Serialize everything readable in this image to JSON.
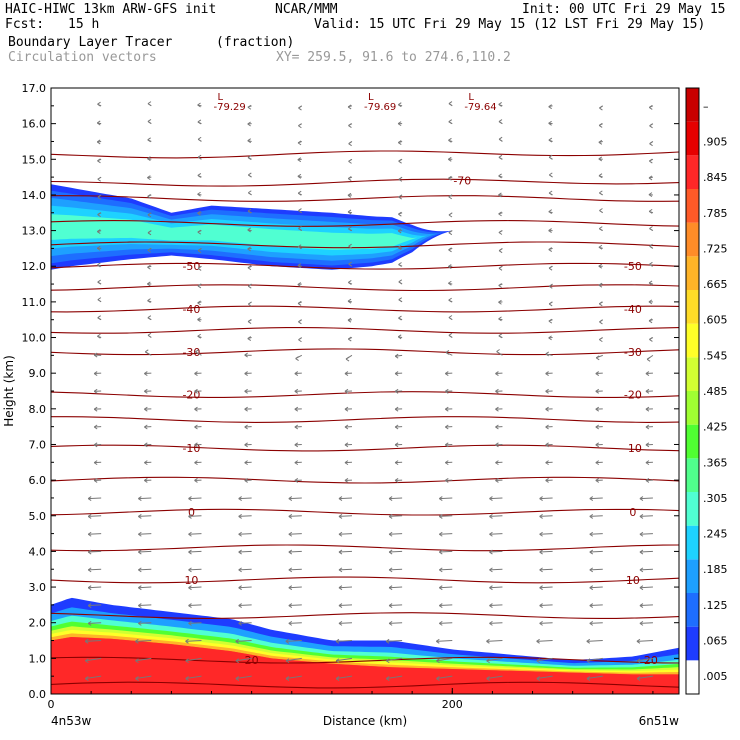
{
  "header": {
    "model": "HAIC-HIWC 13km ARW-GFS init",
    "org": "NCAR/MMM",
    "init": "Init: 00 UTC Fri 29 May 15",
    "fcst_label": "Fcst:",
    "fcst_value": "15 h",
    "valid": "Valid: 15 UTC Fri 29 May 15 (12 LST Fri 29 May 15)",
    "field": "Boundary Layer Tracer",
    "field_units": "(fraction)",
    "vectors": "Circulation vectors",
    "xy": "XY= 259.5, 91.6 to 274.6,110.2"
  },
  "chart_data": {
    "type": "heatmap",
    "title": "Boundary Layer Tracer",
    "xlabel": "Distance (km)",
    "ylabel": "Height (km)",
    "xlim": [
      0,
      313
    ],
    "ylim": [
      0,
      17
    ],
    "x_ticks": [
      0,
      200
    ],
    "y_ticks": [
      "0.0",
      "1.0",
      "2.0",
      "3.0",
      "4.0",
      "5.0",
      "6.0",
      "7.0",
      "8.0",
      "9.0",
      "10.0",
      "11.0",
      "12.0",
      "13.0",
      "14.0",
      "15.0",
      "16.0",
      "17.0"
    ],
    "left_label": "4n53w",
    "right_label": "6n51w",
    "colorbar": {
      "labels": [
        ".005",
        ".065",
        ".125",
        ".185",
        ".245",
        ".305",
        ".365",
        ".425",
        ".485",
        ".545",
        ".605",
        ".665",
        ".725",
        ".785",
        ".845",
        ".905",
        "–"
      ],
      "colors": [
        "#ffffff",
        "#1e3cff",
        "#1e6eff",
        "#1ea0ff",
        "#1ed2ff",
        "#50ffd2",
        "#50ff8c",
        "#50ff32",
        "#a0ff32",
        "#d2ff32",
        "#ffff28",
        "#ffdc28",
        "#ffb428",
        "#ff8c28",
        "#ff5a28",
        "#ff2828",
        "#e60000",
        "#c80000"
      ]
    },
    "temperature_isotherms": [
      {
        "label": "20",
        "h": 0.95
      },
      {
        "label": "10",
        "h": 3.2
      },
      {
        "label": "0",
        "h": 5.1
      },
      {
        "label": "-10",
        "h": 6.9
      },
      {
        "label": "-20",
        "h": 8.4
      },
      {
        "label": "-30",
        "h": 9.6
      },
      {
        "label": "-40",
        "h": 10.8
      },
      {
        "label": "-50",
        "h": 12.0
      },
      {
        "label": "-70",
        "h": 14.4
      }
    ],
    "low_markers": [
      {
        "x": 83,
        "label": "-79.29"
      },
      {
        "x": 158,
        "label": "-79.69"
      },
      {
        "x": 208,
        "label": "-79.64"
      }
    ],
    "boundary_layer": {
      "x": [
        0,
        10,
        30,
        60,
        90,
        110,
        140,
        170,
        200,
        230,
        260,
        290,
        313
      ],
      "top": [
        2.5,
        2.7,
        2.5,
        2.3,
        2.1,
        1.8,
        1.5,
        1.5,
        1.25,
        1.1,
        0.95,
        1.05,
        1.3
      ],
      "red_top": [
        1.5,
        1.6,
        1.55,
        1.4,
        1.2,
        1.0,
        0.85,
        0.75,
        0.7,
        0.65,
        0.6,
        0.55,
        0.55
      ]
    },
    "upper_plume": {
      "x": [
        0,
        10,
        40,
        60,
        80,
        110,
        140,
        160,
        180,
        200
      ],
      "top": [
        14.3,
        14.2,
        13.9,
        13.5,
        13.7,
        13.6,
        13.5,
        13.4,
        13.35,
        13.1
      ],
      "bottom": [
        11.9,
        12.0,
        12.2,
        12.3,
        12.2,
        12.0,
        11.9,
        12.0,
        12.2,
        12.9
      ],
      "core_value": 0.185
    }
  }
}
